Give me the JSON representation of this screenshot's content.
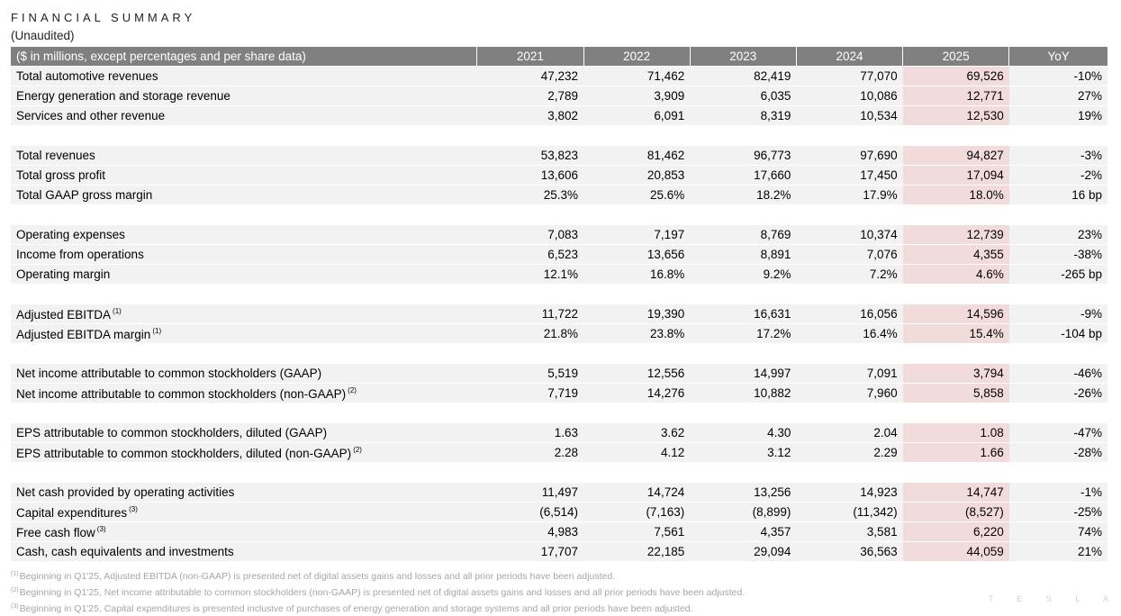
{
  "title": "FINANCIAL SUMMARY",
  "subtitle": "(Unaudited)",
  "logo": "TESLA",
  "colors": {
    "header_bg": "#808080",
    "row_bg": "#f2f2f2",
    "highlight": "#f2dcdb"
  },
  "table": {
    "headers": [
      "($ in millions, except percentages and per share data)",
      "2021",
      "2022",
      "2023",
      "2024",
      "2025",
      "YoY"
    ],
    "groups": [
      [
        {
          "label": "Total automotive revenues",
          "note": "",
          "values": [
            "47,232",
            "71,462",
            "82,419",
            "77,070",
            "69,526",
            "-10%"
          ]
        },
        {
          "label": "Energy generation and storage revenue",
          "note": "",
          "values": [
            "2,789",
            "3,909",
            "6,035",
            "10,086",
            "12,771",
            "27%"
          ]
        },
        {
          "label": "Services and other revenue",
          "note": "",
          "values": [
            "3,802",
            "6,091",
            "8,319",
            "10,534",
            "12,530",
            "19%"
          ]
        }
      ],
      [
        {
          "label": "Total revenues",
          "note": "",
          "values": [
            "53,823",
            "81,462",
            "96,773",
            "97,690",
            "94,827",
            "-3%"
          ]
        },
        {
          "label": "Total gross profit",
          "note": "",
          "values": [
            "13,606",
            "20,853",
            "17,660",
            "17,450",
            "17,094",
            "-2%"
          ]
        },
        {
          "label": "Total GAAP gross margin",
          "note": "",
          "values": [
            "25.3%",
            "25.6%",
            "18.2%",
            "17.9%",
            "18.0%",
            "16 bp"
          ]
        }
      ],
      [
        {
          "label": "Operating expenses",
          "note": "",
          "values": [
            "7,083",
            "7,197",
            "8,769",
            "10,374",
            "12,739",
            "23%"
          ]
        },
        {
          "label": "Income from operations",
          "note": "",
          "values": [
            "6,523",
            "13,656",
            "8,891",
            "7,076",
            "4,355",
            "-38%"
          ]
        },
        {
          "label": "Operating margin",
          "note": "",
          "values": [
            "12.1%",
            "16.8%",
            "9.2%",
            "7.2%",
            "4.6%",
            "-265 bp"
          ]
        }
      ],
      [
        {
          "label": "Adjusted EBITDA",
          "note": "(1)",
          "values": [
            "11,722",
            "19,390",
            "16,631",
            "16,056",
            "14,596",
            "-9%"
          ]
        },
        {
          "label": "Adjusted EBITDA margin",
          "note": "(1)",
          "values": [
            "21.8%",
            "23.8%",
            "17.2%",
            "16.4%",
            "15.4%",
            "-104 bp"
          ]
        }
      ],
      [
        {
          "label": "Net income attributable to common stockholders (GAAP)",
          "note": "",
          "values": [
            "5,519",
            "12,556",
            "14,997",
            "7,091",
            "3,794",
            "-46%"
          ]
        },
        {
          "label": "Net income attributable to common stockholders (non-GAAP)",
          "note": "(2)",
          "values": [
            "7,719",
            "14,276",
            "10,882",
            "7,960",
            "5,858",
            "-26%"
          ]
        }
      ],
      [
        {
          "label": "EPS attributable to common stockholders, diluted (GAAP)",
          "note": "",
          "values": [
            "1.63",
            "3.62",
            "4.30",
            "2.04",
            "1.08",
            "-47%"
          ]
        },
        {
          "label": "EPS attributable to common stockholders, diluted (non-GAAP)",
          "note": "(2)",
          "values": [
            "2.28",
            "4.12",
            "3.12",
            "2.29",
            "1.66",
            "-28%"
          ]
        }
      ],
      [
        {
          "label": "Net cash provided by operating activities",
          "note": "",
          "values": [
            "11,497",
            "14,724",
            "13,256",
            "14,923",
            "14,747",
            "-1%"
          ]
        },
        {
          "label": "Capital expenditures",
          "note": "(3)",
          "values": [
            "(6,514)",
            "(7,163)",
            "(8,899)",
            "(11,342)",
            "(8,527)",
            "-25%"
          ]
        },
        {
          "label": "Free cash flow",
          "note": "(3)",
          "values": [
            "4,983",
            "7,561",
            "4,357",
            "3,581",
            "6,220",
            "74%"
          ]
        },
        {
          "label": "Cash, cash equivalents and investments",
          "note": "",
          "values": [
            "17,707",
            "22,185",
            "29,094",
            "36,563",
            "44,059",
            "21%"
          ]
        }
      ]
    ]
  },
  "footnotes": [
    {
      "mark": "(1)",
      "text": "Beginning in Q1'25, Adjusted EBITDA (non-GAAP) is presented net of digital assets gains and losses and all prior periods have been adjusted."
    },
    {
      "mark": "(2)",
      "text": "Beginning in Q1'25, Net income attributable to common stockholders (non-GAAP) is presented net of digital assets gains and losses and all prior periods have been adjusted."
    },
    {
      "mark": "(3)",
      "text": "Beginning in Q1'25, Capital expenditures is presented inclusive of purchases of energy generation and storage systems and all prior periods have been adjusted."
    }
  ]
}
